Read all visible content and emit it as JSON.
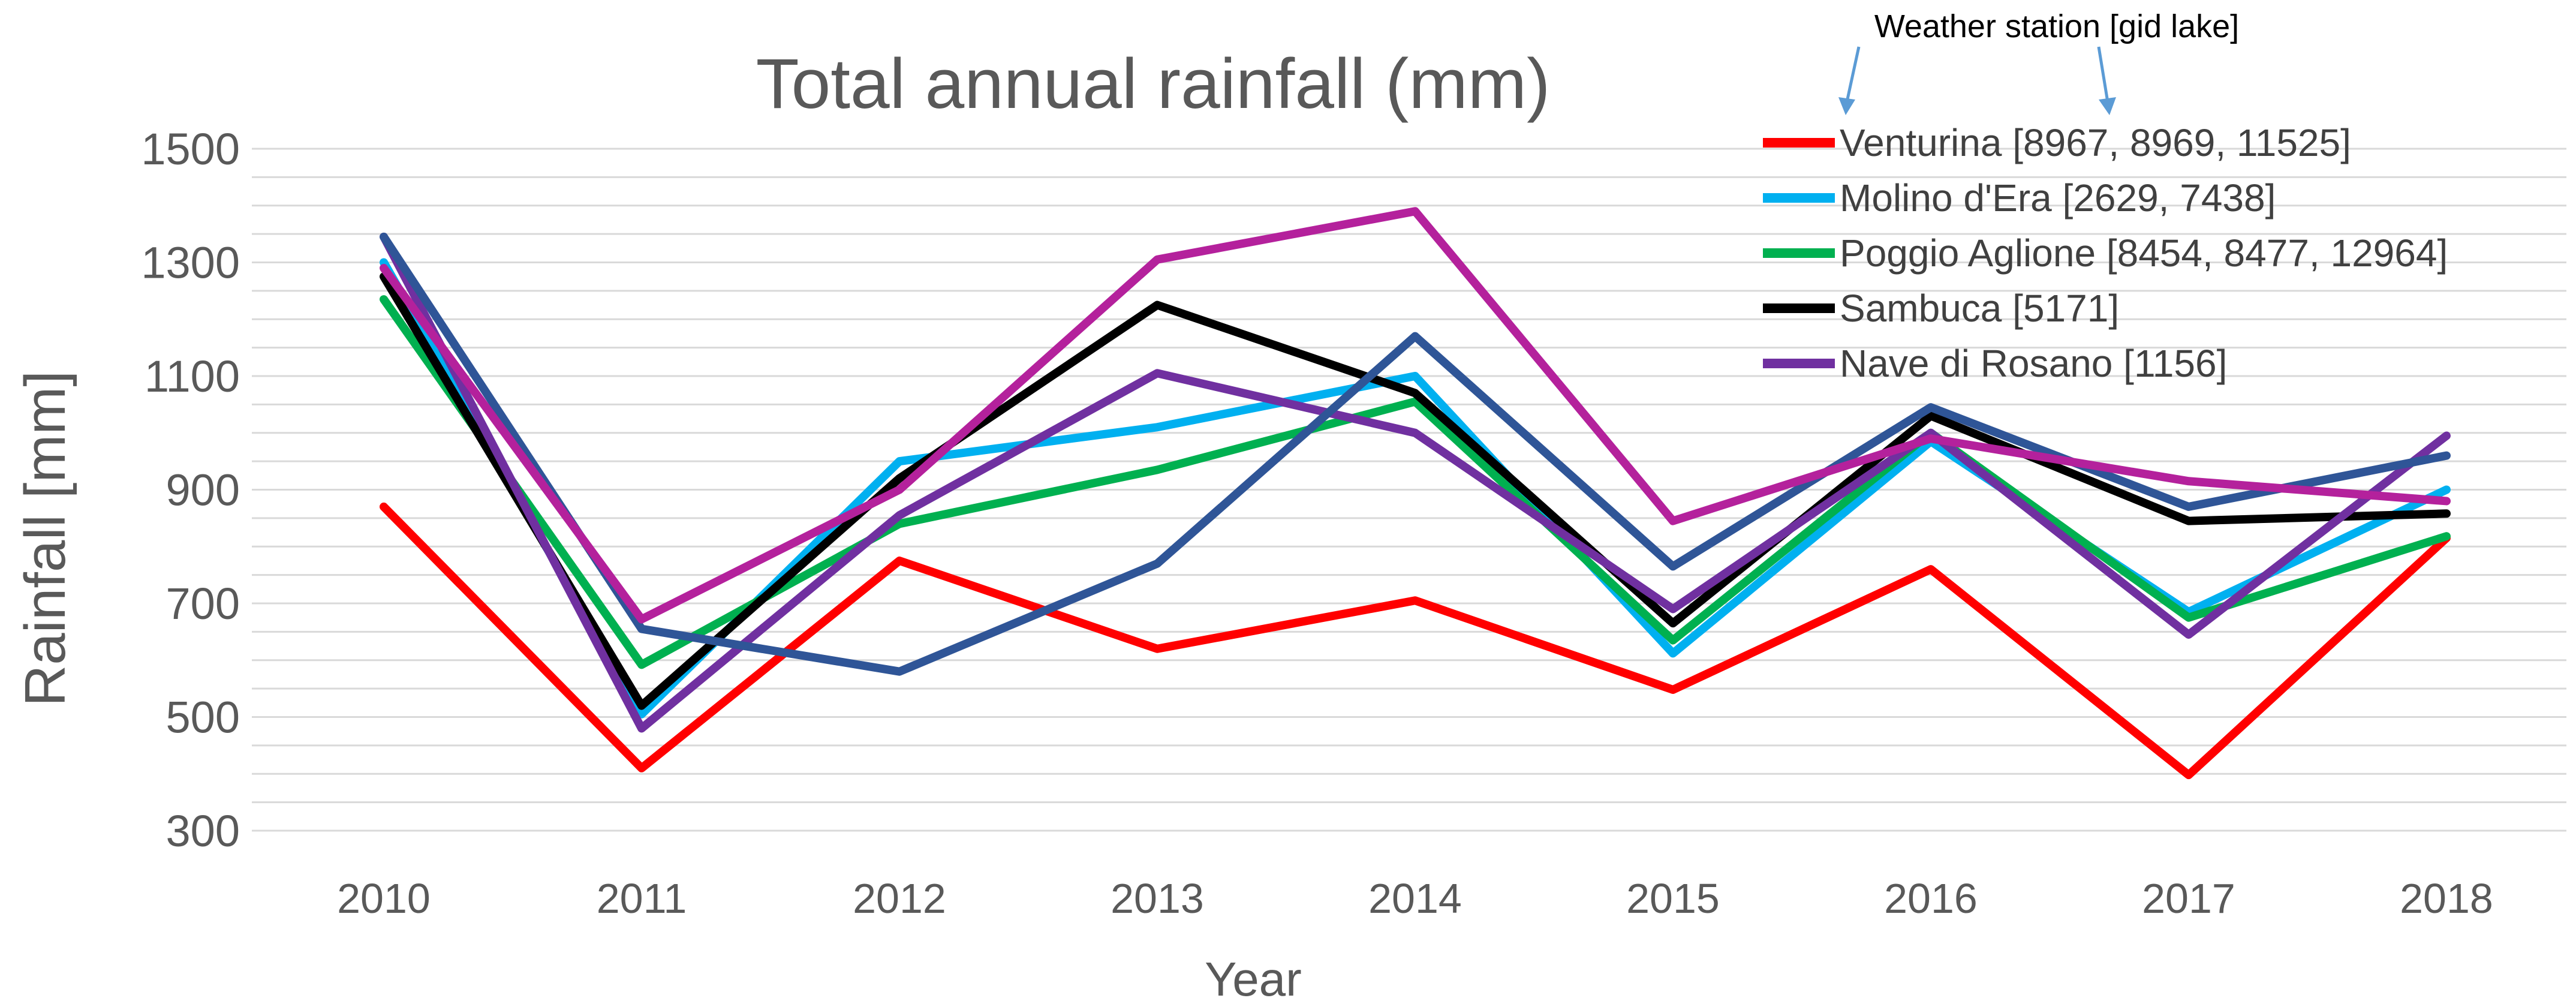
{
  "chart_data": {
    "type": "line",
    "title": "Total annual rainfall (mm)",
    "xlabel": "Year",
    "ylabel": "Rainfall [mm]",
    "ylim": [
      300,
      1500
    ],
    "yticks": [
      300,
      500,
      700,
      900,
      1100,
      1300,
      1500
    ],
    "categories": [
      "2010",
      "2011",
      "2012",
      "2013",
      "2014",
      "2015",
      "2016",
      "2017",
      "2018"
    ],
    "grid": true,
    "legend_position": "top-right",
    "annotation": "Weather station [gid lake]",
    "series": [
      {
        "name": "Venturina [8967, 8969, 11525]",
        "color": "#ff0000",
        "in_legend": true,
        "values": [
          870,
          410,
          775,
          620,
          705,
          548,
          760,
          398,
          815
        ]
      },
      {
        "name": "Molino d'Era [2629, 7438]",
        "color": "#00b0f0",
        "in_legend": true,
        "values": [
          1300,
          505,
          950,
          1010,
          1100,
          612,
          985,
          685,
          900
        ]
      },
      {
        "name": "Poggio Aglione [8454, 8477, 12964]",
        "color": "#00b050",
        "in_legend": true,
        "values": [
          1235,
          592,
          840,
          935,
          1055,
          635,
          1000,
          675,
          818
        ]
      },
      {
        "name": "Sambuca [5171]",
        "color": "#000000",
        "in_legend": true,
        "values": [
          1275,
          520,
          920,
          1225,
          1070,
          665,
          1030,
          845,
          858
        ]
      },
      {
        "name": "Nave di Rosano [1156]",
        "color": "#7030a0",
        "in_legend": true,
        "values": [
          1345,
          480,
          855,
          1105,
          1000,
          690,
          1000,
          645,
          995
        ]
      },
      {
        "name": "",
        "color": "#2f5597",
        "in_legend": false,
        "values": [
          1345,
          655,
          580,
          770,
          1170,
          765,
          1045,
          870,
          960
        ]
      },
      {
        "name": "",
        "color": "#b4219c",
        "in_legend": false,
        "values": [
          1290,
          672,
          900,
          1305,
          1390,
          845,
          990,
          915,
          880
        ]
      }
    ]
  }
}
